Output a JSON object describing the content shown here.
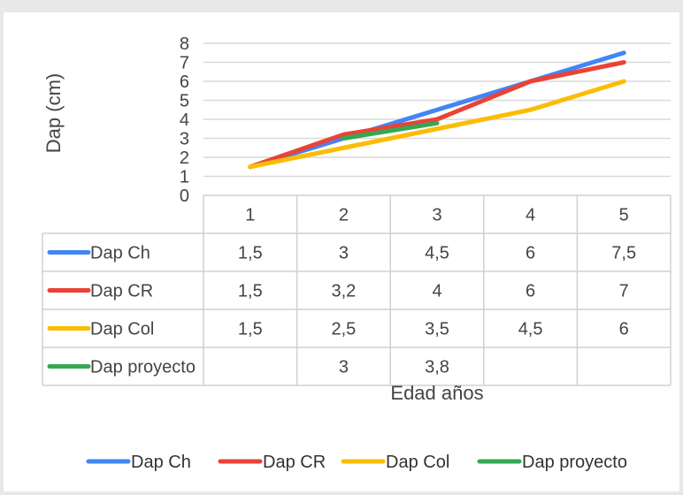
{
  "chart_data": {
    "type": "line",
    "title": "",
    "xlabel": "Edad años",
    "ylabel": "Dap (cm)",
    "ylim": [
      0,
      8
    ],
    "yticks": [
      "0",
      "1",
      "2",
      "3",
      "4",
      "5",
      "6",
      "7",
      "8"
    ],
    "grid": true,
    "legend_position": "bottom",
    "data_table": true,
    "categories": [
      "1",
      "2",
      "3",
      "4",
      "5"
    ],
    "series": [
      {
        "name": "Dap Ch",
        "color": "#4285f4",
        "values": [
          1.5,
          3,
          4.5,
          6,
          7.5
        ],
        "labels": [
          "1,5",
          "3",
          "4,5",
          "6",
          "7,5"
        ]
      },
      {
        "name": "Dap CR",
        "color": "#ea4335",
        "values": [
          1.5,
          3.2,
          4,
          6,
          7
        ],
        "labels": [
          "1,5",
          "3,2",
          "4",
          "6",
          "7"
        ]
      },
      {
        "name": "Dap Col",
        "color": "#fbbc04",
        "values": [
          1.5,
          2.5,
          3.5,
          4.5,
          6
        ],
        "labels": [
          "1,5",
          "2,5",
          "3,5",
          "4,5",
          "6"
        ]
      },
      {
        "name": "Dap proyecto",
        "color": "#34a853",
        "values": [
          null,
          3,
          3.8,
          null,
          null
        ],
        "labels": [
          "",
          "3",
          "3,8",
          "",
          ""
        ]
      }
    ]
  }
}
